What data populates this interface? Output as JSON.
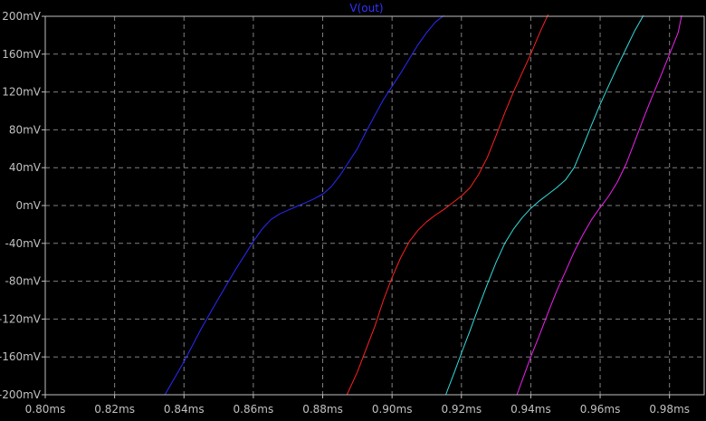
{
  "chart_data": {
    "type": "line",
    "title": "V(out)",
    "xlabel": "",
    "ylabel": "",
    "xlim": [
      0.8,
      0.99
    ],
    "ylim": [
      -200,
      200
    ],
    "x_ticks": [
      0.8,
      0.82,
      0.84,
      0.86,
      0.88,
      0.9,
      0.92,
      0.94,
      0.96,
      0.98
    ],
    "x_tick_labels": [
      "0.80ms",
      "0.82ms",
      "0.84ms",
      "0.86ms",
      "0.88ms",
      "0.90ms",
      "0.92ms",
      "0.94ms",
      "0.96ms",
      "0.98ms"
    ],
    "y_ticks": [
      200,
      160,
      120,
      80,
      40,
      0,
      -40,
      -80,
      -120,
      -160,
      -200
    ],
    "y_tick_labels": [
      "200mV",
      "160mV",
      "120mV",
      "80mV",
      "40mV",
      "0mV",
      "-40mV",
      "-80mV",
      "-120mV",
      "-160mV",
      "-200mV"
    ],
    "grid": true,
    "colors": {
      "background": "#000000",
      "axes": "#c0c0c0",
      "grid": "#808080",
      "title": "#3333ff",
      "ticks": "#c0c0c0"
    },
    "series": [
      {
        "color": "#2a2aff",
        "x": [
          0.8345,
          0.84,
          0.845,
          0.85,
          0.855,
          0.86,
          0.8625,
          0.865,
          0.8675,
          0.87,
          0.8725,
          0.875,
          0.8775,
          0.88,
          0.8825,
          0.885,
          0.8875,
          0.89,
          0.8925,
          0.895,
          0.8975,
          0.9,
          0.9025,
          0.905,
          0.9075,
          0.91,
          0.9125,
          0.915
        ],
        "y": [
          -200,
          -165,
          -130,
          -98,
          -67,
          -38,
          -25,
          -15,
          -9,
          -5,
          -1,
          3,
          7,
          12,
          20,
          32,
          46,
          60,
          78,
          95,
          112,
          126,
          140,
          155,
          170,
          183,
          194,
          201
        ]
      },
      {
        "color": "#ff2020",
        "x": [
          0.887,
          0.89,
          0.8925,
          0.895,
          0.8975,
          0.9,
          0.9025,
          0.905,
          0.9075,
          0.91,
          0.9125,
          0.915,
          0.9175,
          0.92,
          0.9225,
          0.925,
          0.9275,
          0.93,
          0.9325,
          0.935,
          0.9375,
          0.94,
          0.9425,
          0.945
        ],
        "y": [
          -200,
          -176,
          -152,
          -128,
          -100,
          -76,
          -55,
          -38,
          -26,
          -17,
          -10,
          -4,
          3,
          10,
          19,
          33,
          51,
          74,
          98,
          120,
          140,
          160,
          182,
          202
        ]
      },
      {
        "color": "#33dddd",
        "x": [
          0.9155,
          0.918,
          0.92,
          0.9225,
          0.925,
          0.9275,
          0.93,
          0.9325,
          0.935,
          0.9375,
          0.94,
          0.9425,
          0.945,
          0.9475,
          0.95,
          0.9525,
          0.955,
          0.9575,
          0.96,
          0.9625,
          0.965,
          0.9675,
          0.97,
          0.9725
        ],
        "y": [
          -200,
          -176,
          -156,
          -132,
          -107,
          -83,
          -60,
          -40,
          -25,
          -13,
          -3,
          5,
          12,
          19,
          27,
          40,
          62,
          85,
          107,
          127,
          147,
          166,
          185,
          201
        ]
      },
      {
        "color": "#ee22ee",
        "x": [
          0.936,
          0.938,
          0.94,
          0.9425,
          0.945,
          0.9475,
          0.95,
          0.9525,
          0.955,
          0.9575,
          0.96,
          0.9625,
          0.965,
          0.9675,
          0.97,
          0.9725,
          0.975,
          0.9775,
          0.98,
          0.9825,
          0.9835
        ],
        "y": [
          -200,
          -180,
          -160,
          -137,
          -113,
          -90,
          -70,
          -49,
          -31,
          -15,
          -2,
          10,
          25,
          44,
          68,
          92,
          115,
          137,
          160,
          183,
          201
        ]
      }
    ]
  }
}
